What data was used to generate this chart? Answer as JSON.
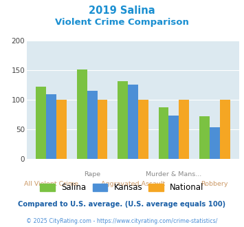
{
  "title_line1": "2019 Salina",
  "title_line2": "Violent Crime Comparison",
  "salina": [
    122,
    152,
    132,
    87,
    72
  ],
  "kansas": [
    109,
    115,
    126,
    73,
    54
  ],
  "national": [
    100,
    100,
    100,
    100,
    100
  ],
  "top_labels": [
    "",
    "Rape",
    "",
    "Murder & Mans...",
    ""
  ],
  "bottom_labels": [
    "All Violent Crime",
    "",
    "Aggravated Assault",
    "",
    "Robbery"
  ],
  "color_salina": "#7bc242",
  "color_kansas": "#4c8fd6",
  "color_national": "#f5a623",
  "bg_plot": "#dce9f0",
  "bg_fig": "#ffffff",
  "ylim": [
    0,
    200
  ],
  "yticks": [
    0,
    50,
    100,
    150,
    200
  ],
  "title_color": "#1a8fd1",
  "footer_note": "Compared to U.S. average. (U.S. average equals 100)",
  "footer_copy": "© 2025 CityRating.com - https://www.cityrating.com/crime-statistics/",
  "footer_note_color": "#1a5fa6",
  "footer_copy_color": "#4c8fd6"
}
